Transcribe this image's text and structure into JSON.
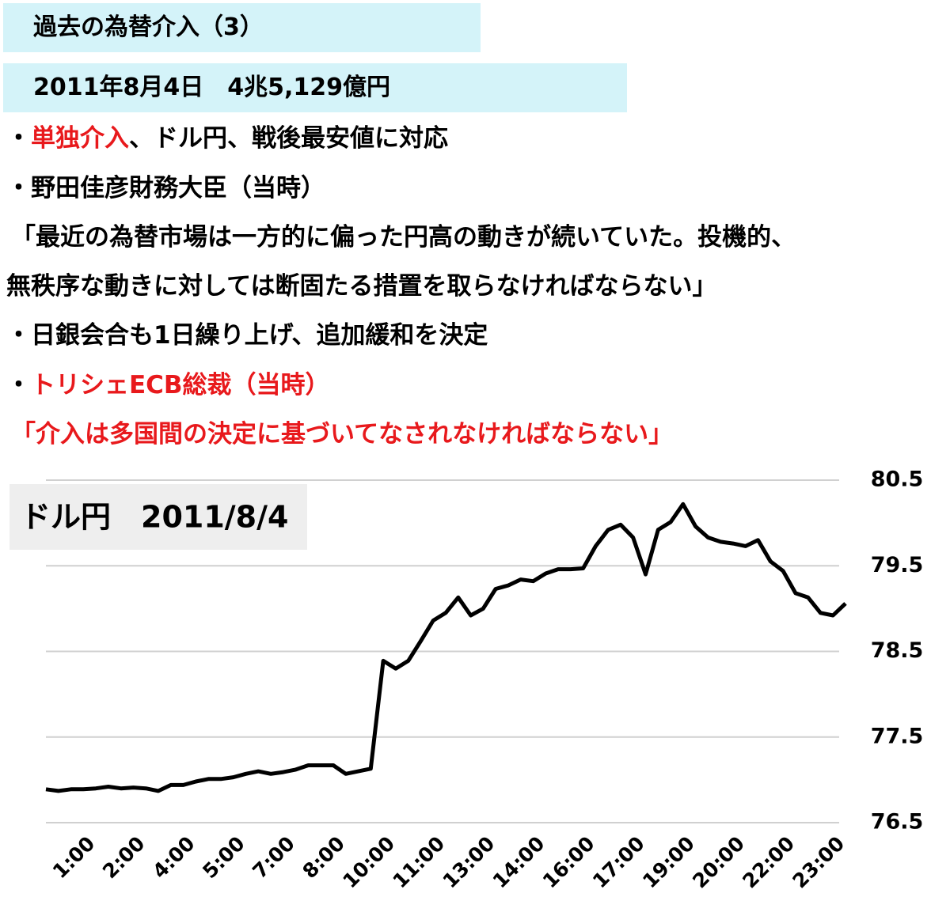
{
  "header": {
    "title": "過去の為替介入（3）",
    "subtitle": "2011年8月4日　4兆5,129億円"
  },
  "body": {
    "lines": [
      [
        "・",
        "単独介入",
        "、ドル円、戦後最安値に対応"
      ],
      [
        "・野田佳彦財務大臣（当時）"
      ],
      [
        "「最近の為替市場は一方的に偏った円高の動きが続いていた。投機的、"
      ],
      [
        "無秩序な動きに対しては断固たる措置を取らなければならない」"
      ],
      [
        "・日銀会合も1日繰り上げ、追加緩和を決定"
      ],
      [
        "・",
        "トリシェECB総裁（当時）"
      ],
      [
        "「介入は多国間の決定に基づいてなされなければならない」"
      ]
    ]
  },
  "chart_data": {
    "type": "line",
    "title": "ドル円　2011/8/4",
    "color": "#000000",
    "categories": [
      null,
      null,
      null,
      null,
      "1:00",
      null,
      null,
      null,
      "2:00",
      null,
      null,
      null,
      "4:00",
      null,
      null,
      null,
      "5:00",
      null,
      null,
      null,
      "7:00",
      null,
      null,
      null,
      "8:00",
      null,
      null,
      null,
      "10:00",
      null,
      null,
      null,
      "11:00",
      null,
      null,
      null,
      "13:00",
      null,
      null,
      null,
      "14:00",
      null,
      null,
      null,
      "16:00",
      null,
      null,
      null,
      "17:00",
      null,
      null,
      null,
      "19:00",
      null,
      null,
      null,
      "20:00",
      null,
      null,
      null,
      "22:00",
      null,
      null,
      null,
      "23:00"
    ],
    "values": [
      76.89,
      76.87,
      76.89,
      76.89,
      76.9,
      76.92,
      76.9,
      76.91,
      76.9,
      76.87,
      76.94,
      76.94,
      76.98,
      77.01,
      77.01,
      77.03,
      77.07,
      77.1,
      77.07,
      77.09,
      77.12,
      77.17,
      77.17,
      77.17,
      77.07,
      77.1,
      77.13,
      78.39,
      78.3,
      78.39,
      78.62,
      78.86,
      78.95,
      79.13,
      78.92,
      79.0,
      79.23,
      79.27,
      79.34,
      79.32,
      79.41,
      79.46,
      79.46,
      79.47,
      79.73,
      79.92,
      79.98,
      79.83,
      79.4,
      79.92,
      80.01,
      80.22,
      79.96,
      79.83,
      79.78,
      79.76,
      79.73,
      79.8,
      79.55,
      79.44,
      79.18,
      79.13,
      78.95,
      78.92,
      79.06
    ],
    "ylim": [
      76.5,
      80.5
    ],
    "yticks": [
      76.5,
      77.5,
      78.5,
      79.5,
      80.5
    ],
    "grid": true
  }
}
